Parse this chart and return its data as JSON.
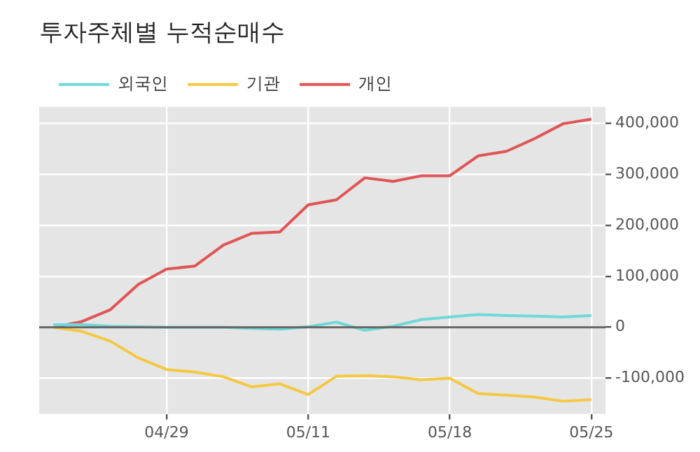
{
  "chart_data": {
    "type": "line",
    "title": "투자주체별 누적순매수",
    "categories": [
      null,
      null,
      null,
      null,
      "04/29",
      null,
      null,
      null,
      null,
      "05/11",
      null,
      null,
      null,
      null,
      "05/18",
      null,
      null,
      null,
      null,
      "05/25"
    ],
    "series": [
      {
        "name": "외국인",
        "color": "#6fd8d8",
        "values": [
          5000,
          5000,
          2000,
          1000,
          0,
          0,
          0,
          -2000,
          -4000,
          1000,
          10000,
          -6000,
          2000,
          15000,
          20000,
          25000,
          23000,
          22000,
          20000,
          23000
        ]
      },
      {
        "name": "기관",
        "color": "#f5c842",
        "values": [
          0,
          -8000,
          -27000,
          -60000,
          -83000,
          -88000,
          -97000,
          -117000,
          -111000,
          -132000,
          -96000,
          -95000,
          -97000,
          -103000,
          -100000,
          -130000,
          -133000,
          -137000,
          -145000,
          -142000
        ]
      },
      {
        "name": "개인",
        "color": "#e05555",
        "values": [
          0,
          11000,
          34000,
          84000,
          114000,
          120000,
          161000,
          184000,
          187000,
          240000,
          250000,
          293000,
          286000,
          297000,
          297000,
          336000,
          345000,
          370000,
          399000,
          408000
        ]
      }
    ],
    "ylim": [
      -170000,
      432000
    ],
    "yticks": [
      {
        "value": -100000,
        "label": "-100,000"
      },
      0,
      {
        "value": 100000,
        "label": "100,000"
      },
      {
        "value": 200000,
        "label": "200,000"
      },
      {
        "value": 300000,
        "label": "300,000"
      },
      {
        "value": 400000,
        "label": "400,000"
      }
    ],
    "ref_lines": [
      {
        "axis": "y",
        "value": 0,
        "color": "#666666"
      }
    ],
    "grid": true,
    "legend": "top left",
    "marker": "none",
    "line_style": "solid"
  }
}
